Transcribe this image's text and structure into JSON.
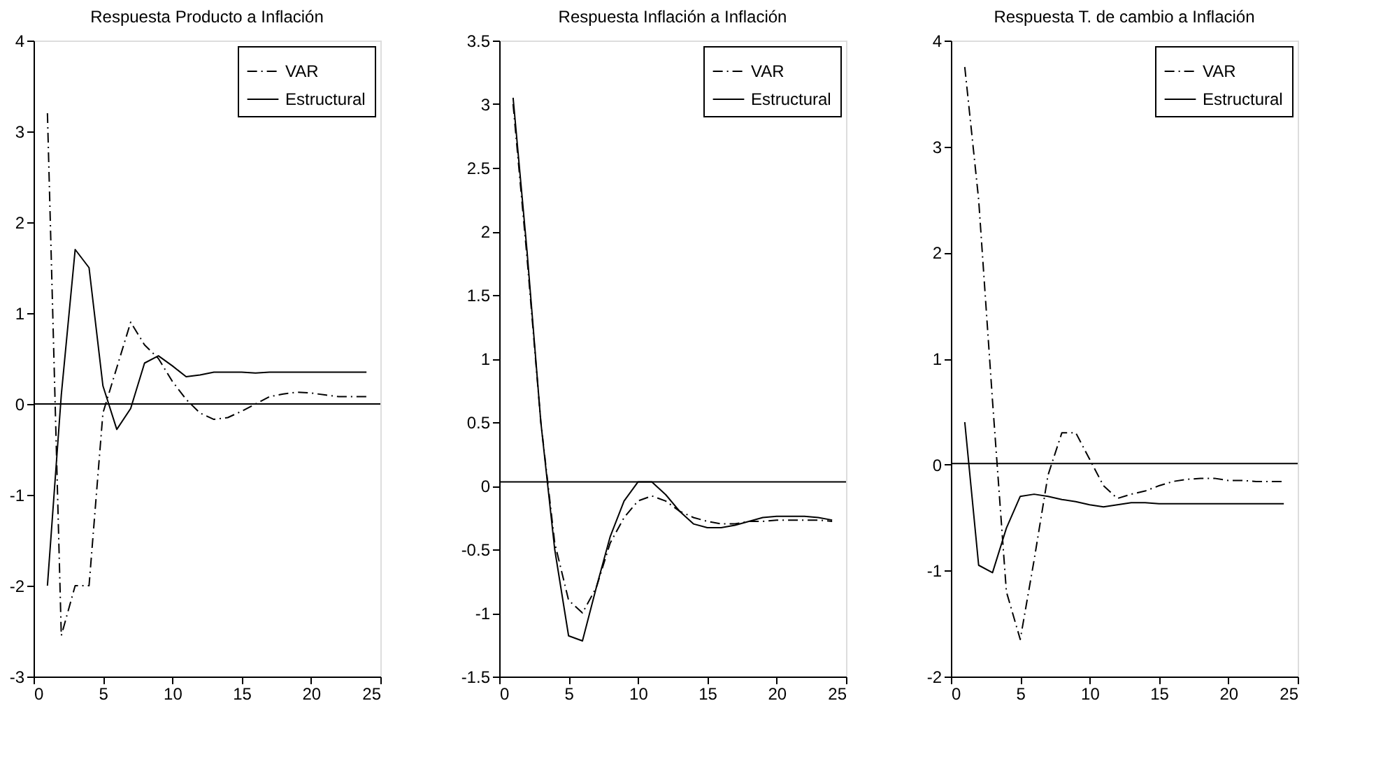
{
  "chart_data": [
    {
      "type": "line",
      "title": "Respuesta Producto a Inflación",
      "x": [
        1,
        2,
        3,
        4,
        5,
        6,
        7,
        8,
        9,
        10,
        11,
        12,
        13,
        14,
        15,
        16,
        17,
        18,
        19,
        20,
        21,
        22,
        23,
        24
      ],
      "xlim": [
        0,
        25
      ],
      "xticks": [
        0,
        5,
        10,
        15,
        20,
        25
      ],
      "ylim": [
        -3,
        4
      ],
      "yticks": [
        -3,
        -2,
        -1,
        0,
        1,
        2,
        3,
        4
      ],
      "grid": false,
      "legend": "top right",
      "series": [
        {
          "name": "VAR",
          "color": "#000000",
          "line_style": "dashdot",
          "values": [
            3.2,
            -2.55,
            -2.0,
            -2.0,
            -0.1,
            0.4,
            0.9,
            0.65,
            0.5,
            0.25,
            0.05,
            -0.1,
            -0.17,
            -0.15,
            -0.08,
            0.0,
            0.08,
            0.11,
            0.13,
            0.12,
            0.1,
            0.08,
            0.08,
            0.08
          ]
        },
        {
          "name": "Estructural",
          "color": "#000000",
          "line_style": "solid",
          "values": [
            -2.0,
            0.1,
            1.7,
            1.5,
            0.2,
            -0.28,
            -0.05,
            0.45,
            0.53,
            0.42,
            0.3,
            0.32,
            0.35,
            0.35,
            0.35,
            0.34,
            0.35,
            0.35,
            0.35,
            0.35,
            0.35,
            0.35,
            0.35,
            0.35
          ]
        }
      ],
      "ref_lines": [
        {
          "axis": "y",
          "value": 0,
          "color": "#000000",
          "line_style": "solid"
        }
      ]
    },
    {
      "type": "line",
      "title": "Respuesta Inflación a Inflación",
      "x": [
        1,
        2,
        3,
        4,
        5,
        6,
        7,
        8,
        9,
        10,
        11,
        12,
        13,
        14,
        15,
        16,
        17,
        18,
        19,
        20,
        21,
        22,
        23,
        24
      ],
      "xlim": [
        0,
        25
      ],
      "xticks": [
        0,
        5,
        10,
        15,
        20,
        25
      ],
      "ylim": [
        -1.5,
        3.5
      ],
      "yticks": [
        -1.5,
        -1,
        -0.5,
        0,
        0.5,
        1,
        1.5,
        2,
        2.5,
        3,
        3.5
      ],
      "grid": false,
      "legend": "top right",
      "series": [
        {
          "name": "VAR",
          "color": "#000000",
          "line_style": "dashdot",
          "values": [
            3.0,
            1.8,
            0.5,
            -0.45,
            -0.9,
            -1.0,
            -0.8,
            -0.45,
            -0.25,
            -0.12,
            -0.08,
            -0.12,
            -0.2,
            -0.25,
            -0.28,
            -0.3,
            -0.3,
            -0.28,
            -0.28,
            -0.27,
            -0.27,
            -0.27,
            -0.27,
            -0.28
          ]
        },
        {
          "name": "Estructural",
          "color": "#000000",
          "line_style": "solid",
          "values": [
            3.05,
            1.85,
            0.5,
            -0.5,
            -1.18,
            -1.22,
            -0.8,
            -0.4,
            -0.12,
            0.03,
            0.03,
            -0.07,
            -0.2,
            -0.3,
            -0.33,
            -0.33,
            -0.31,
            -0.28,
            -0.25,
            -0.24,
            -0.24,
            -0.24,
            -0.25,
            -0.27
          ]
        }
      ],
      "ref_lines": [
        {
          "axis": "y",
          "value": 0.03,
          "color": "#000000",
          "line_style": "solid"
        }
      ]
    },
    {
      "type": "line",
      "title": "Respuesta T. de cambio a Inflación",
      "x": [
        1,
        2,
        3,
        4,
        5,
        6,
        7,
        8,
        9,
        10,
        11,
        12,
        13,
        14,
        15,
        16,
        17,
        18,
        19,
        20,
        21,
        22,
        23,
        24
      ],
      "xlim": [
        0,
        25
      ],
      "xticks": [
        0,
        5,
        10,
        15,
        20,
        25
      ],
      "ylim": [
        -2,
        4
      ],
      "yticks": [
        -2,
        -1,
        0,
        1,
        2,
        3,
        4
      ],
      "grid": false,
      "legend": "top right",
      "series": [
        {
          "name": "VAR",
          "color": "#000000",
          "line_style": "dashdot",
          "values": [
            3.75,
            2.5,
            0.6,
            -1.2,
            -1.65,
            -0.9,
            -0.1,
            0.3,
            0.3,
            0.05,
            -0.2,
            -0.32,
            -0.28,
            -0.25,
            -0.2,
            -0.16,
            -0.14,
            -0.13,
            -0.13,
            -0.15,
            -0.15,
            -0.16,
            -0.16,
            -0.16
          ]
        },
        {
          "name": "Estructural",
          "color": "#000000",
          "line_style": "solid",
          "values": [
            0.4,
            -0.95,
            -1.02,
            -0.6,
            -0.3,
            -0.28,
            -0.3,
            -0.33,
            -0.35,
            -0.38,
            -0.4,
            -0.38,
            -0.36,
            -0.36,
            -0.37,
            -0.37,
            -0.37,
            -0.37,
            -0.37,
            -0.37,
            -0.37,
            -0.37,
            -0.37,
            -0.37
          ]
        }
      ],
      "ref_lines": [
        {
          "axis": "y",
          "value": 0.01,
          "color": "#000000",
          "line_style": "solid"
        }
      ]
    }
  ]
}
